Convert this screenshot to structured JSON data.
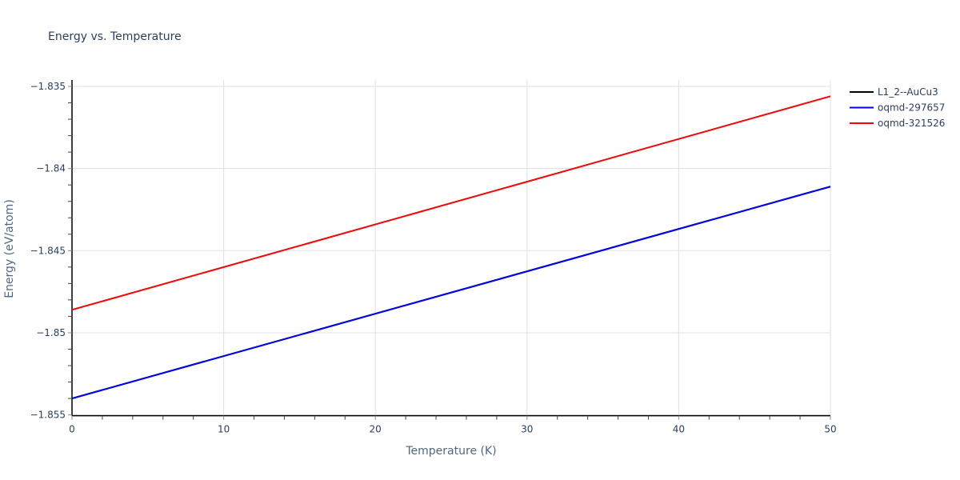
{
  "chart_data": {
    "type": "line",
    "title": "Energy vs. Temperature",
    "xlabel": "Temperature (K)",
    "ylabel": "Energy (eV/atom)",
    "xlim": [
      0,
      50
    ],
    "ylim": [
      -1.855,
      -1.835
    ],
    "x_ticks": [
      0,
      10,
      20,
      30,
      40,
      50
    ],
    "x_tick_labels": [
      "0",
      "10",
      "20",
      "30",
      "40",
      "50"
    ],
    "y_ticks": [
      -1.855,
      -1.85,
      -1.845,
      -1.84,
      -1.835
    ],
    "y_tick_labels": [
      "−1.855",
      "−1.85",
      "−1.845",
      "−1.84",
      "−1.835"
    ],
    "grid": true,
    "legend_position": "right-top",
    "series": [
      {
        "name": "L1_2--AuCu3",
        "color": "#000000",
        "x": [
          0,
          50
        ],
        "values": [
          -1.854,
          -1.8411
        ]
      },
      {
        "name": "oqmd-297657",
        "color": "#0000ff",
        "x": [
          0,
          50
        ],
        "values": [
          -1.854,
          -1.8411
        ]
      },
      {
        "name": "oqmd-321526",
        "color": "#ff0000",
        "x": [
          0,
          50
        ],
        "values": [
          -1.8486,
          -1.8356
        ]
      }
    ]
  }
}
